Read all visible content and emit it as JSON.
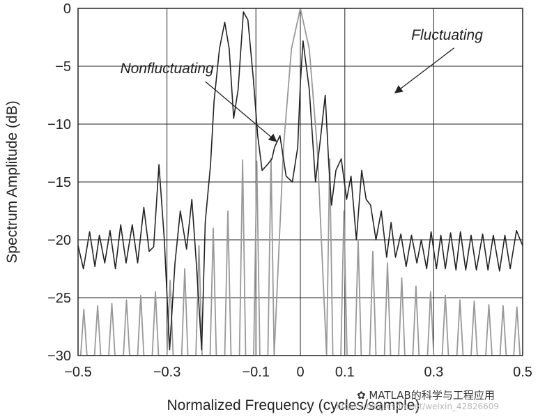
{
  "chart_data": {
    "type": "line",
    "title": "",
    "xlabel": "Normalized Frequency (cycles/sample)",
    "ylabel": "Spectrum Amplitude (dB)",
    "xlim": [
      -0.5,
      0.5
    ],
    "ylim": [
      -30,
      0
    ],
    "xticks": [
      -0.5,
      -0.3,
      -0.1,
      0,
      0.1,
      0.3,
      0.5
    ],
    "xtick_labels": [
      "−0.5",
      "−0.3",
      "−0.1",
      "0",
      "0.1",
      "0.3",
      "0.5"
    ],
    "yticks": [
      0,
      -5,
      -10,
      -15,
      -20,
      -25,
      -30
    ],
    "ytick_labels": [
      "0",
      "−5",
      "−10",
      "−15",
      "−20",
      "−25",
      "−30"
    ],
    "grid": true,
    "series": [
      {
        "name": "Fluctuating",
        "color": "#222222",
        "x": [
          -0.5,
          -0.488,
          -0.474,
          -0.462,
          -0.452,
          -0.44,
          -0.428,
          -0.416,
          -0.404,
          -0.392,
          -0.378,
          -0.366,
          -0.352,
          -0.34,
          -0.33,
          -0.318,
          -0.306,
          -0.294,
          -0.282,
          -0.27,
          -0.256,
          -0.244,
          -0.234,
          -0.222,
          -0.214,
          -0.208,
          -0.202,
          -0.194,
          -0.182,
          -0.17,
          -0.16,
          -0.15,
          -0.14,
          -0.128,
          -0.118,
          -0.106,
          -0.096,
          -0.086,
          -0.074,
          -0.064,
          -0.058,
          -0.046,
          -0.032,
          -0.018,
          -0.006,
          0.0,
          0.006,
          0.02,
          0.034,
          0.046,
          0.056,
          0.064,
          0.07,
          0.08,
          0.092,
          0.104,
          0.114,
          0.126,
          0.138,
          0.148,
          0.158,
          0.17,
          0.182,
          0.194,
          0.204,
          0.214,
          0.226,
          0.238,
          0.25,
          0.262,
          0.272,
          0.284,
          0.294,
          0.306,
          0.316,
          0.326,
          0.338,
          0.35,
          0.36,
          0.372,
          0.384,
          0.396,
          0.41,
          0.422,
          0.434,
          0.448,
          0.46,
          0.472,
          0.486,
          0.5
        ],
        "y": [
          -20.5,
          -22.5,
          -19.3,
          -22.3,
          -19.6,
          -22.0,
          -19.2,
          -22.5,
          -18.7,
          -22.0,
          -18.7,
          -22.0,
          -17.2,
          -21.0,
          -20.6,
          -13.5,
          -20.0,
          -29.5,
          -22.0,
          -17.5,
          -20.8,
          -16.5,
          -22.0,
          -29.5,
          -18.5,
          -16.0,
          -13.5,
          -8.0,
          -3.5,
          -1.2,
          -3.5,
          -9.5,
          -7.0,
          -0.3,
          -1.0,
          -6.0,
          -11.0,
          -14.0,
          -13.5,
          -13.0,
          -12.0,
          -11.0,
          -14.5,
          -15.0,
          -12.0,
          -6.5,
          -2.8,
          -7.0,
          -15.0,
          -11.0,
          -7.5,
          -13.5,
          -17.0,
          -14.0,
          -13.0,
          -16.5,
          -14.5,
          -20.0,
          -14.0,
          -16.5,
          -17.0,
          -20.0,
          -17.5,
          -21.5,
          -18.5,
          -21.5,
          -19.5,
          -22.3,
          -19.6,
          -22.0,
          -20.0,
          -22.5,
          -19.3,
          -22.5,
          -19.6,
          -22.5,
          -19.4,
          -22.6,
          -19.3,
          -22.6,
          -19.6,
          -22.6,
          -19.5,
          -22.6,
          -19.6,
          -22.7,
          -19.6,
          -22.5,
          -19.2,
          -20.5
        ]
      },
      {
        "name": "Nonfluctuating",
        "color": "#999999",
        "x": [
          -0.494,
          -0.487,
          -0.48,
          -0.463,
          -0.456,
          -0.449,
          -0.431,
          -0.424,
          -0.417,
          -0.398,
          -0.391,
          -0.384,
          -0.366,
          -0.359,
          -0.352,
          -0.333,
          -0.326,
          -0.319,
          -0.3,
          -0.293,
          -0.286,
          -0.267,
          -0.26,
          -0.253,
          -0.235,
          -0.228,
          -0.221,
          -0.203,
          -0.196,
          -0.189,
          -0.17,
          -0.163,
          -0.156,
          -0.137,
          -0.13,
          -0.123,
          -0.105,
          -0.098,
          -0.091,
          -0.073,
          -0.066,
          -0.059,
          -0.038,
          -0.02,
          0.0,
          0.02,
          0.038,
          0.059,
          0.066,
          0.073,
          0.091,
          0.098,
          0.105,
          0.123,
          0.13,
          0.137,
          0.156,
          0.163,
          0.17,
          0.189,
          0.196,
          0.203,
          0.221,
          0.228,
          0.235,
          0.253,
          0.26,
          0.267,
          0.286,
          0.293,
          0.3,
          0.319,
          0.326,
          0.333,
          0.352,
          0.359,
          0.366,
          0.384,
          0.391,
          0.398,
          0.417,
          0.424,
          0.431,
          0.449,
          0.456,
          0.463,
          0.48,
          0.487,
          0.494
        ],
        "y": [
          -30,
          -26.0,
          -30,
          -30,
          -25.7,
          -30,
          -30,
          -25.5,
          -30,
          -30,
          -25.2,
          -30,
          -30,
          -24.8,
          -30,
          -30,
          -24.5,
          -30,
          -30,
          -23.5,
          -30,
          -30,
          -22.5,
          -30,
          -30,
          -20.5,
          -30,
          -30,
          -19.0,
          -30,
          -30,
          -17.5,
          -30,
          -30,
          -13.1,
          -30,
          -30,
          -13.2,
          -30,
          -30,
          -13.0,
          -30,
          -12.0,
          -3.5,
          0.0,
          -3.5,
          -12.0,
          -30,
          -13.0,
          -30,
          -30,
          -17.5,
          -30,
          -30,
          -20.0,
          -30,
          -30,
          -21.0,
          -30,
          -30,
          -22.0,
          -30,
          -30,
          -23.3,
          -30,
          -30,
          -24.0,
          -30,
          -30,
          -24.5,
          -30,
          -30,
          -24.8,
          -30,
          -30,
          -25.2,
          -30,
          -30,
          -25.3,
          -30,
          -30,
          -25.6,
          -30,
          -30,
          -25.7,
          -30,
          -30,
          -25.8,
          -30
        ]
      }
    ],
    "annotations": [
      {
        "text": "Nonfluctuating",
        "x": -0.3,
        "y": -5.6,
        "arrow_to": [
          -0.054,
          -11.5
        ]
      },
      {
        "text": "Fluctuating",
        "x": 0.33,
        "y": -2.7,
        "arrow_to": [
          0.213,
          -7.3
        ]
      }
    ]
  },
  "watermark": {
    "text": "MATLAB的科学与工程应用",
    "url_text": "https://blog.csdn.net/weixin_42826609"
  }
}
